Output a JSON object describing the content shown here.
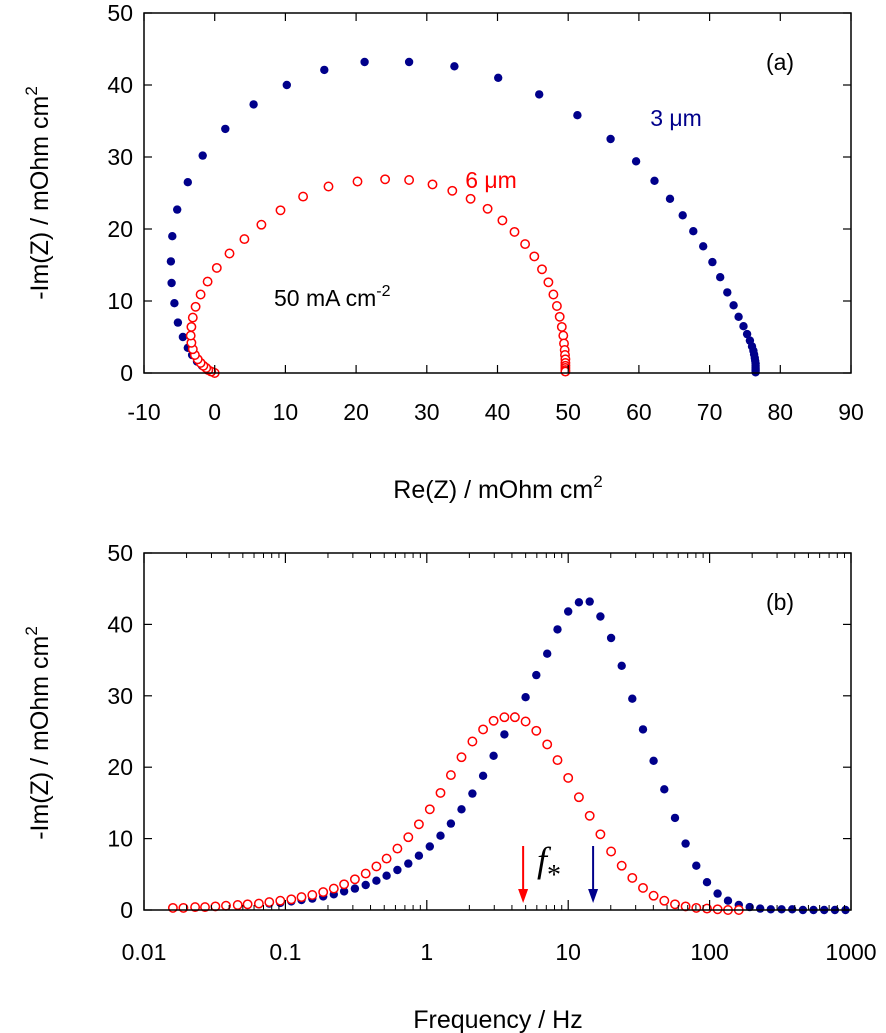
{
  "colors": {
    "blue": "#00008b",
    "red": "#ff0000",
    "axis": "#000000"
  },
  "chart_data": [
    {
      "type": "scatter",
      "panel_label": "(a)",
      "xlabel": "Re(Z) / mOhm cm",
      "xlabel_sup": "2",
      "ylabel": "-Im(Z) / mOhm cm",
      "ylabel_sup": "2",
      "xlim": [
        -10,
        90
      ],
      "ylim": [
        0,
        50
      ],
      "x_ticks": [
        -10,
        0,
        10,
        20,
        30,
        40,
        50,
        60,
        70,
        80,
        90
      ],
      "y_ticks": [
        0,
        10,
        20,
        30,
        40,
        50
      ],
      "grid": false,
      "annotation_current": "50 mA cm",
      "annotation_current_sup": "-2",
      "series": [
        {
          "name": "3 μm",
          "marker": "filled",
          "x": [
            0,
            -1,
            -1.8,
            -2.5,
            -3.2,
            -3.8,
            -4.5,
            -5.2,
            -5.7,
            -6.1,
            -6.2,
            -6,
            -5.3,
            -3.8,
            -1.7,
            1.5,
            5.5,
            10.2,
            15.5,
            21.2,
            27.5,
            33.9,
            40.1,
            45.9,
            51.3,
            56,
            59.6,
            62.2,
            64.4,
            66.2,
            67.7,
            69.1,
            70.4,
            71.5,
            72.5,
            73.4,
            74.1,
            74.8,
            75.3,
            75.7,
            76,
            76.2,
            76.3,
            76.4,
            76.45,
            76.5,
            76.5,
            76.5,
            76.5,
            76.5,
            76.5
          ],
          "y": [
            0,
            0.5,
            1,
            1.6,
            2.5,
            3.5,
            5,
            7,
            9.7,
            12.5,
            15.5,
            19,
            22.7,
            26.5,
            30.2,
            33.9,
            37.3,
            40,
            42.1,
            43.2,
            43.2,
            42.6,
            41,
            38.7,
            35.8,
            32.5,
            29.4,
            26.7,
            24.2,
            21.9,
            19.7,
            17.6,
            15.4,
            13.3,
            11.2,
            9.4,
            7.8,
            6.5,
            5.4,
            4.5,
            3.7,
            3.1,
            2.6,
            2.1,
            1.7,
            1.3,
            1,
            0.7,
            0.5,
            0.3,
            0.1
          ]
        },
        {
          "name": "6 μm",
          "marker": "open",
          "x": [
            0,
            -0.5,
            -0.9,
            -1.2,
            -1.6,
            -2,
            -2.4,
            -2.8,
            -3.1,
            -3.3,
            -3.4,
            -3.3,
            -3.1,
            -2.7,
            -2,
            -1,
            0.3,
            2.1,
            4.2,
            6.6,
            9.3,
            12.5,
            16.1,
            20.2,
            24.1,
            27.5,
            30.8,
            33.6,
            36.2,
            38.6,
            40.7,
            42.4,
            43.9,
            45.2,
            46.3,
            47.2,
            47.9,
            48.4,
            48.8,
            49.1,
            49.3,
            49.4,
            49.5,
            49.55,
            49.6,
            49.6,
            49.6,
            49.6,
            49.6,
            49.6
          ],
          "y": [
            0,
            0.2,
            0.4,
            0.7,
            1,
            1.4,
            1.9,
            2.5,
            3.3,
            4.2,
            5.2,
            6.4,
            7.7,
            9.2,
            10.9,
            12.7,
            14.6,
            16.6,
            18.6,
            20.6,
            22.6,
            24.5,
            25.9,
            26.6,
            26.9,
            26.8,
            26.2,
            25.3,
            24.2,
            22.8,
            21.2,
            19.6,
            17.9,
            16.2,
            14.4,
            12.6,
            10.9,
            9.3,
            7.8,
            6.4,
            5.2,
            4.1,
            3.2,
            2.5,
            1.9,
            1.4,
            1,
            0.7,
            0.4,
            0.2
          ]
        }
      ]
    },
    {
      "type": "scatter",
      "panel_label": "(b)",
      "xlabel": "Frequency / Hz",
      "ylabel": "-Im(Z) / mOhm cm",
      "ylabel_sup": "2",
      "xscale": "log",
      "xlim": [
        0.01,
        1000
      ],
      "ylim": [
        0,
        50
      ],
      "x_ticks": [
        0.01,
        0.1,
        1,
        10,
        100,
        1000
      ],
      "x_tick_labels": [
        "0.01",
        "0.1",
        "1",
        "10",
        "100",
        "1000"
      ],
      "y_ticks": [
        0,
        10,
        20,
        30,
        40,
        50
      ],
      "grid": false,
      "f_symbol": "f",
      "f_subscript": "*",
      "markers_freq": {
        "red": 4.8,
        "blue": 15
      },
      "series": [
        {
          "name": "3 μm",
          "marker": "filled",
          "x": [
            0.016,
            0.019,
            0.023,
            0.027,
            0.032,
            0.038,
            0.046,
            0.054,
            0.065,
            0.077,
            0.092,
            0.11,
            0.13,
            0.155,
            0.185,
            0.22,
            0.26,
            0.31,
            0.37,
            0.44,
            0.52,
            0.62,
            0.74,
            0.88,
            1.05,
            1.25,
            1.48,
            1.76,
            2.1,
            2.5,
            2.97,
            3.54,
            4.2,
            5,
            5.95,
            7.1,
            8.4,
            10,
            11.9,
            14.2,
            16.9,
            20.1,
            23.9,
            28.4,
            33.8,
            40.2,
            47.8,
            56.9,
            67.7,
            80.5,
            95.8,
            114,
            135,
            161,
            192,
            228,
            271,
            323,
            384,
            457,
            543,
            646,
            769,
            915
          ],
          "y": [
            0.3,
            0.3,
            0.4,
            0.4,
            0.5,
            0.5,
            0.6,
            0.7,
            0.8,
            0.9,
            1,
            1.2,
            1.4,
            1.6,
            1.9,
            2.2,
            2.6,
            3,
            3.5,
            4.1,
            4.8,
            5.6,
            6.5,
            7.6,
            8.9,
            10.4,
            12.1,
            14.1,
            16.3,
            18.8,
            21.6,
            24.6,
            27.1,
            29.8,
            32.9,
            35.9,
            39.3,
            41.8,
            43.1,
            43.2,
            41.1,
            38.1,
            34.2,
            29.6,
            25.3,
            20.9,
            16.9,
            12.9,
            9.3,
            6.2,
            3.9,
            2.3,
            1.3,
            0.7,
            0.4,
            0.2,
            0.1,
            0.1,
            0.1,
            0,
            0,
            0,
            0,
            0
          ]
        },
        {
          "name": "6 μm",
          "marker": "open",
          "x": [
            0.016,
            0.019,
            0.023,
            0.027,
            0.032,
            0.038,
            0.046,
            0.054,
            0.065,
            0.077,
            0.092,
            0.11,
            0.13,
            0.155,
            0.185,
            0.22,
            0.26,
            0.31,
            0.37,
            0.44,
            0.52,
            0.62,
            0.74,
            0.88,
            1.05,
            1.25,
            1.48,
            1.76,
            2.1,
            2.5,
            2.97,
            3.54,
            4.2,
            5,
            5.95,
            7.1,
            8.4,
            10,
            11.9,
            14.2,
            16.9,
            20.1,
            23.9,
            28.4,
            33.8,
            40.2,
            47.8,
            56.9,
            67.7,
            80.5,
            95.8,
            114,
            135,
            161
          ],
          "y": [
            0.3,
            0.3,
            0.4,
            0.4,
            0.5,
            0.6,
            0.7,
            0.8,
            0.9,
            1.1,
            1.3,
            1.5,
            1.8,
            2.1,
            2.5,
            3,
            3.6,
            4.3,
            5.1,
            6.1,
            7.2,
            8.6,
            10.2,
            12,
            14.1,
            16.4,
            18.9,
            21.4,
            23.6,
            25.3,
            26.5,
            27,
            27,
            26.4,
            25.1,
            23.2,
            21,
            18.5,
            15.8,
            13.2,
            10.6,
            8.2,
            6.2,
            4.5,
            3.1,
            2,
            1.3,
            0.8,
            0.5,
            0.3,
            0.2,
            0.1,
            0,
            0
          ]
        }
      ]
    }
  ]
}
